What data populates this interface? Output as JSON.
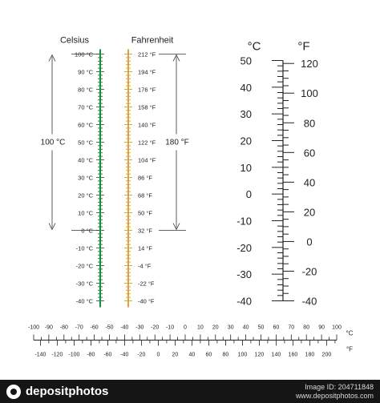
{
  "vertical_dual": {
    "celsius_title": "Celsius",
    "fahrenheit_title": "Fahrenheit",
    "celsius_labels": [
      "100 °C",
      "90 °C",
      "80 °C",
      "70 °C",
      "60 °C",
      "50 °C",
      "40 °C",
      "30 °C",
      "20 °C",
      "10 °C",
      "0 °C",
      "-10 °C",
      "-20 °C",
      "-30 °C",
      "-40 °C"
    ],
    "fahrenheit_labels": [
      "212 °F",
      "194 °F",
      "176 °F",
      "158 °F",
      "140 °F",
      "122 °F",
      "104 °F",
      "86 °F",
      "68 °F",
      "50 °F",
      "32 °F",
      "14 °F",
      "-4 °F",
      "-22 °F",
      "-40 °F"
    ],
    "celsius_span_label": "100 °C",
    "fahrenheit_span_label": "180 °F",
    "celsius_color": "#1e8a3c",
    "fahrenheit_color": "#e0a33a"
  },
  "ruler": {
    "celsius_unit": "°C",
    "fahrenheit_unit": "°F",
    "celsius_labels": [
      "50",
      "40",
      "30",
      "20",
      "10",
      "0",
      "-10",
      "-20",
      "-30",
      "-40"
    ],
    "fahrenheit_labels": [
      "120",
      "100",
      "80",
      "60",
      "40",
      "20",
      "0",
      "-20",
      "-40"
    ]
  },
  "horizontal": {
    "celsius_unit": "°C",
    "fahrenheit_unit": "°F",
    "celsius_labels": [
      "-100",
      "-90",
      "-80",
      "-70",
      "-60",
      "-50",
      "-40",
      "-30",
      "-20",
      "-10",
      "0",
      "10",
      "20",
      "30",
      "40",
      "50",
      "60",
      "70",
      "80",
      "90",
      "100"
    ],
    "fahrenheit_labels": [
      "-140",
      "-120",
      "-100",
      "-80",
      "-60",
      "-40",
      "-20",
      "0",
      "20",
      "40",
      "60",
      "80",
      "100",
      "120",
      "140",
      "160",
      "180",
      "200"
    ]
  },
  "footer": {
    "brand": "depositphotos",
    "image_id": "Image ID: 204711848",
    "site": "www.depositphotos.com"
  }
}
